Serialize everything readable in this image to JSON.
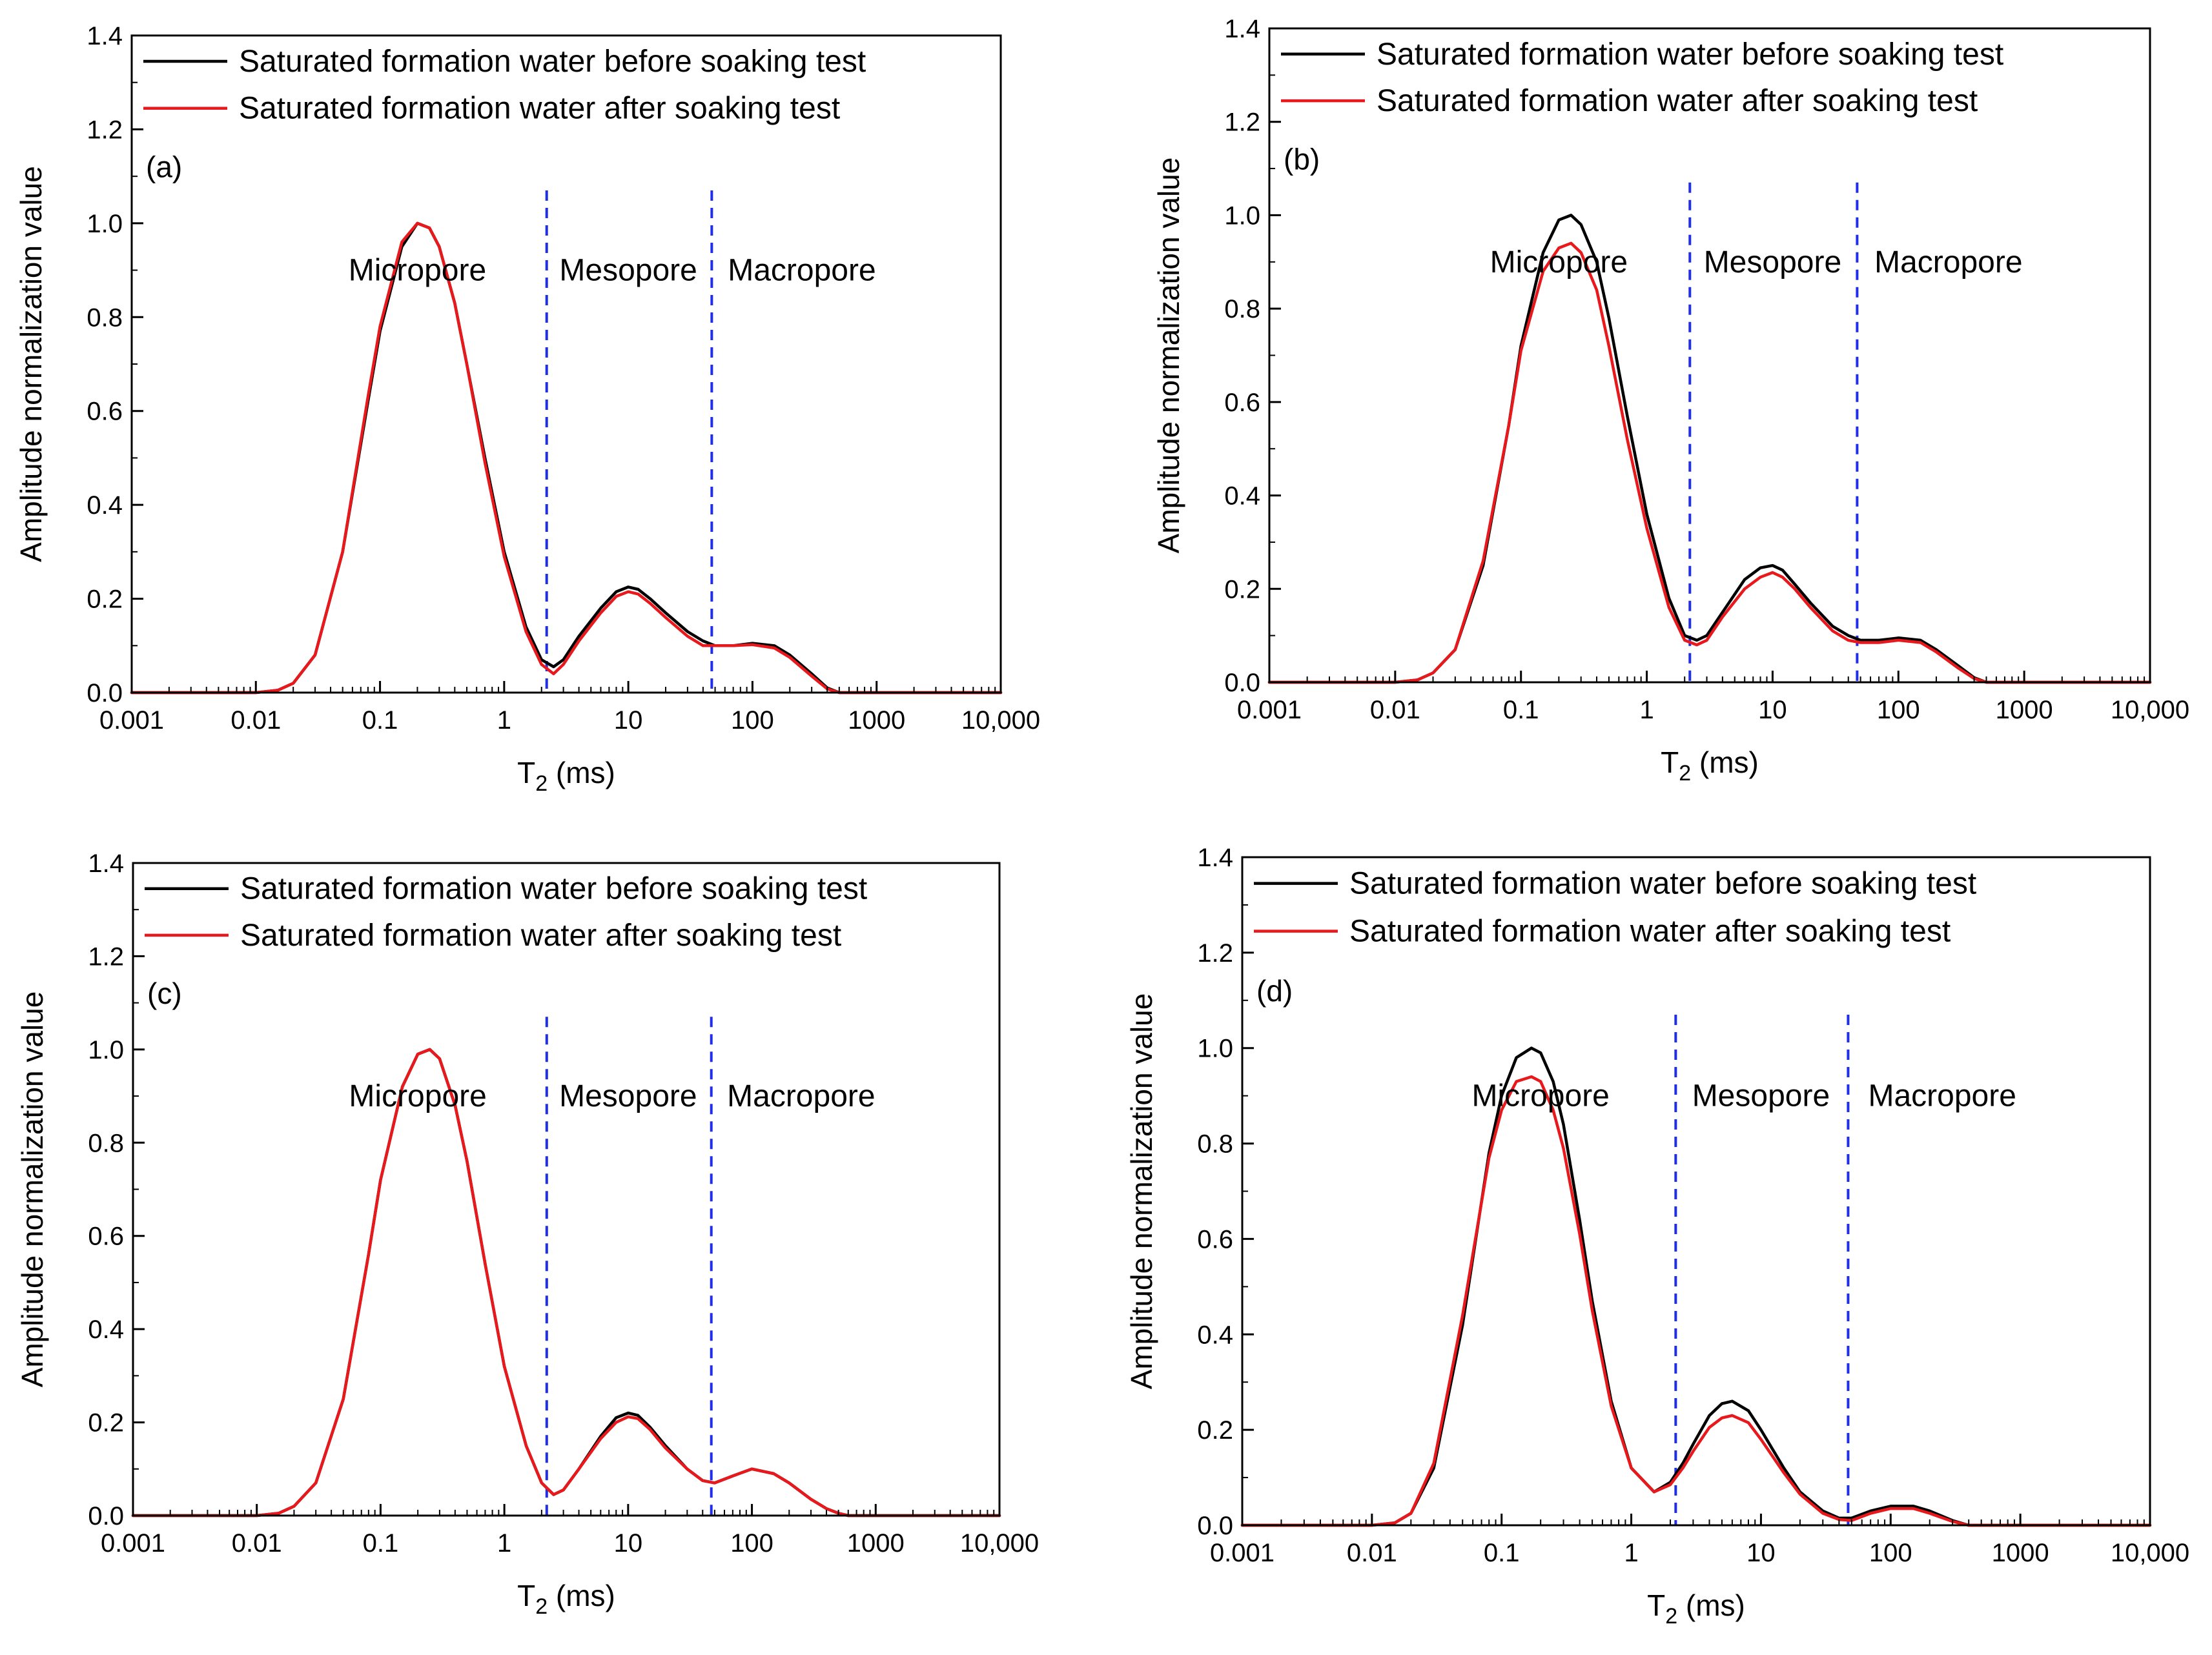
{
  "figure": {
    "legend": {
      "before": "Saturated formation water before soaking test",
      "after": "Saturated formation water after soaking test"
    },
    "colors": {
      "before": "#000000",
      "after": "#e8191c",
      "divider": "#1f2ee8",
      "axis": "#000000"
    }
  },
  "chart_data": [
    {
      "type": "line",
      "panel": "(a)",
      "xlabel": "T2 (ms)",
      "ylabel": "Amplitude normalization value",
      "x_scale": "log",
      "xlim": [
        0.001,
        10000
      ],
      "ylim": [
        0,
        1.4
      ],
      "x_ticks": [
        0.001,
        0.01,
        0.1,
        1,
        10,
        100,
        1000,
        10000
      ],
      "x_tick_labels": [
        "0.001",
        "0.01",
        "0.1",
        "1",
        "10",
        "100",
        "1000",
        "10,000"
      ],
      "y_ticks": [
        0.0,
        0.2,
        0.4,
        0.6,
        0.8,
        1.0,
        1.2,
        1.4
      ],
      "y_tick_labels": [
        "0.0",
        "0.2",
        "0.4",
        "0.6",
        "0.8",
        "1.0",
        "1.2",
        "1.4"
      ],
      "dividers_ms": [
        2.2,
        47
      ],
      "regions": [
        "Micropore",
        "Mesopore",
        "Macropore"
      ],
      "series": [
        {
          "name": "Saturated formation water before soaking test",
          "color": "#000000",
          "x": [
            0.01,
            0.015,
            0.02,
            0.03,
            0.05,
            0.08,
            0.1,
            0.15,
            0.2,
            0.25,
            0.3,
            0.4,
            0.5,
            0.7,
            1.0,
            1.5,
            2.0,
            2.5,
            3.0,
            4.0,
            6.0,
            8.0,
            10,
            12,
            15,
            20,
            30,
            40,
            50,
            70,
            100,
            150,
            200,
            300,
            400,
            500
          ],
          "values": [
            0.0,
            0.005,
            0.02,
            0.08,
            0.3,
            0.62,
            0.77,
            0.95,
            1.0,
            0.99,
            0.95,
            0.83,
            0.7,
            0.5,
            0.3,
            0.14,
            0.07,
            0.055,
            0.07,
            0.12,
            0.18,
            0.215,
            0.225,
            0.22,
            0.2,
            0.17,
            0.13,
            0.11,
            0.1,
            0.1,
            0.105,
            0.1,
            0.08,
            0.04,
            0.01,
            0.0
          ]
        },
        {
          "name": "Saturated formation water after soaking test",
          "color": "#e8191c",
          "x": [
            0.01,
            0.015,
            0.02,
            0.03,
            0.05,
            0.08,
            0.1,
            0.15,
            0.2,
            0.25,
            0.3,
            0.4,
            0.5,
            0.7,
            1.0,
            1.5,
            2.0,
            2.5,
            3.0,
            4.0,
            6.0,
            8.0,
            10,
            12,
            15,
            20,
            30,
            40,
            50,
            70,
            100,
            150,
            200,
            300,
            400,
            500
          ],
          "values": [
            0.0,
            0.005,
            0.02,
            0.08,
            0.3,
            0.63,
            0.78,
            0.96,
            1.0,
            0.99,
            0.95,
            0.83,
            0.7,
            0.49,
            0.29,
            0.13,
            0.06,
            0.04,
            0.06,
            0.11,
            0.17,
            0.205,
            0.215,
            0.21,
            0.19,
            0.16,
            0.12,
            0.1,
            0.1,
            0.1,
            0.102,
            0.095,
            0.075,
            0.035,
            0.008,
            0.0
          ]
        }
      ]
    },
    {
      "type": "line",
      "panel": "(b)",
      "xlabel": "T2 (ms)",
      "ylabel": "Amplitude normalization value",
      "x_scale": "log",
      "xlim": [
        0.001,
        10000
      ],
      "ylim": [
        0,
        1.4
      ],
      "x_ticks": [
        0.001,
        0.01,
        0.1,
        1,
        10,
        100,
        1000,
        10000
      ],
      "x_tick_labels": [
        "0.001",
        "0.01",
        "0.1",
        "1",
        "10",
        "100",
        "1000",
        "10,000"
      ],
      "y_ticks": [
        0.0,
        0.2,
        0.4,
        0.6,
        0.8,
        1.0,
        1.2,
        1.4
      ],
      "y_tick_labels": [
        "0.0",
        "0.2",
        "0.4",
        "0.6",
        "0.8",
        "1.0",
        "1.2",
        "1.4"
      ],
      "dividers_ms": [
        2.2,
        47
      ],
      "regions": [
        "Micropore",
        "Mesopore",
        "Macropore"
      ],
      "series": [
        {
          "name": "Saturated formation water before soaking test",
          "color": "#000000",
          "x": [
            0.01,
            0.015,
            0.02,
            0.03,
            0.05,
            0.08,
            0.1,
            0.15,
            0.2,
            0.25,
            0.3,
            0.4,
            0.5,
            0.7,
            1.0,
            1.5,
            2.0,
            2.5,
            3.0,
            4.0,
            6.0,
            8.0,
            10,
            12,
            15,
            20,
            30,
            40,
            50,
            70,
            100,
            150,
            200,
            300,
            400,
            500
          ],
          "values": [
            0.0,
            0.005,
            0.02,
            0.07,
            0.25,
            0.55,
            0.72,
            0.92,
            0.99,
            1.0,
            0.98,
            0.9,
            0.78,
            0.57,
            0.36,
            0.18,
            0.1,
            0.09,
            0.1,
            0.15,
            0.22,
            0.245,
            0.25,
            0.24,
            0.21,
            0.17,
            0.12,
            0.1,
            0.09,
            0.09,
            0.095,
            0.09,
            0.07,
            0.035,
            0.01,
            0.0
          ]
        },
        {
          "name": "Saturated formation water after soaking test",
          "color": "#e8191c",
          "x": [
            0.01,
            0.015,
            0.02,
            0.03,
            0.05,
            0.08,
            0.1,
            0.15,
            0.2,
            0.25,
            0.3,
            0.4,
            0.5,
            0.7,
            1.0,
            1.5,
            2.0,
            2.5,
            3.0,
            4.0,
            6.0,
            8.0,
            10,
            12,
            15,
            20,
            30,
            40,
            50,
            70,
            100,
            150,
            200,
            300,
            400,
            500
          ],
          "values": [
            0.0,
            0.005,
            0.02,
            0.07,
            0.26,
            0.55,
            0.71,
            0.88,
            0.93,
            0.94,
            0.92,
            0.84,
            0.72,
            0.52,
            0.33,
            0.16,
            0.09,
            0.08,
            0.09,
            0.14,
            0.2,
            0.225,
            0.235,
            0.225,
            0.2,
            0.16,
            0.11,
            0.09,
            0.085,
            0.085,
            0.09,
            0.085,
            0.065,
            0.03,
            0.008,
            0.0
          ]
        }
      ]
    },
    {
      "type": "line",
      "panel": "(c)",
      "xlabel": "T2 (ms)",
      "ylabel": "Amplitude normalization value",
      "x_scale": "log",
      "xlim": [
        0.001,
        10000
      ],
      "ylim": [
        0,
        1.4
      ],
      "x_ticks": [
        0.001,
        0.01,
        0.1,
        1,
        10,
        100,
        1000,
        10000
      ],
      "x_tick_labels": [
        "0.001",
        "0.01",
        "0.1",
        "1",
        "10",
        "100",
        "1000",
        "10,000"
      ],
      "y_ticks": [
        0.0,
        0.2,
        0.4,
        0.6,
        0.8,
        1.0,
        1.2,
        1.4
      ],
      "y_tick_labels": [
        "0.0",
        "0.2",
        "0.4",
        "0.6",
        "0.8",
        "1.0",
        "1.2",
        "1.4"
      ],
      "dividers_ms": [
        2.2,
        47
      ],
      "regions": [
        "Micropore",
        "Mesopore",
        "Macropore"
      ],
      "series": [
        {
          "name": "Saturated formation water before soaking test",
          "color": "#000000",
          "x": [
            0.01,
            0.015,
            0.02,
            0.03,
            0.05,
            0.08,
            0.1,
            0.15,
            0.2,
            0.25,
            0.3,
            0.4,
            0.5,
            0.7,
            1.0,
            1.5,
            2.0,
            2.5,
            3.0,
            4.0,
            6.0,
            8.0,
            10,
            12,
            15,
            20,
            30,
            40,
            50,
            70,
            100,
            150,
            200,
            300,
            400,
            500,
            600
          ],
          "values": [
            0.0,
            0.005,
            0.02,
            0.07,
            0.25,
            0.56,
            0.72,
            0.92,
            0.99,
            1.0,
            0.98,
            0.88,
            0.76,
            0.54,
            0.32,
            0.15,
            0.07,
            0.045,
            0.055,
            0.1,
            0.17,
            0.21,
            0.22,
            0.215,
            0.19,
            0.15,
            0.1,
            0.075,
            0.07,
            0.085,
            0.1,
            0.09,
            0.07,
            0.035,
            0.015,
            0.005,
            0.0
          ]
        },
        {
          "name": "Saturated formation water after soaking test",
          "color": "#e8191c",
          "x": [
            0.01,
            0.015,
            0.02,
            0.03,
            0.05,
            0.08,
            0.1,
            0.15,
            0.2,
            0.25,
            0.3,
            0.4,
            0.5,
            0.7,
            1.0,
            1.5,
            2.0,
            2.5,
            3.0,
            4.0,
            6.0,
            8.0,
            10,
            12,
            15,
            20,
            30,
            40,
            50,
            70,
            100,
            150,
            200,
            300,
            400,
            500,
            600
          ],
          "values": [
            0.0,
            0.005,
            0.02,
            0.07,
            0.25,
            0.56,
            0.72,
            0.92,
            0.99,
            1.0,
            0.98,
            0.88,
            0.76,
            0.54,
            0.32,
            0.15,
            0.07,
            0.045,
            0.055,
            0.1,
            0.165,
            0.2,
            0.212,
            0.208,
            0.185,
            0.145,
            0.1,
            0.075,
            0.07,
            0.085,
            0.1,
            0.09,
            0.07,
            0.035,
            0.015,
            0.005,
            0.0
          ]
        }
      ]
    },
    {
      "type": "line",
      "panel": "(d)",
      "xlabel": "T2 (ms)",
      "ylabel": "Amplitude normalization value",
      "x_scale": "log",
      "xlim": [
        0.001,
        10000
      ],
      "ylim": [
        0,
        1.4
      ],
      "x_ticks": [
        0.001,
        0.01,
        0.1,
        1,
        10,
        100,
        1000,
        10000
      ],
      "x_tick_labels": [
        "0.001",
        "0.01",
        "0.1",
        "1",
        "10",
        "100",
        "1000",
        "10,000"
      ],
      "y_ticks": [
        0.0,
        0.2,
        0.4,
        0.6,
        0.8,
        1.0,
        1.2,
        1.4
      ],
      "y_tick_labels": [
        "0.0",
        "0.2",
        "0.4",
        "0.6",
        "0.8",
        "1.0",
        "1.2",
        "1.4"
      ],
      "dividers_ms": [
        2.2,
        47
      ],
      "regions": [
        "Micropore",
        "Mesopore",
        "Macropore"
      ],
      "series": [
        {
          "name": "Saturated formation water before soaking test",
          "color": "#000000",
          "x": [
            0.01,
            0.015,
            0.02,
            0.03,
            0.05,
            0.08,
            0.1,
            0.13,
            0.17,
            0.2,
            0.25,
            0.3,
            0.4,
            0.5,
            0.7,
            1.0,
            1.5,
            2.0,
            2.5,
            3.0,
            4.0,
            5.0,
            6.0,
            8.0,
            10,
            15,
            20,
            30,
            40,
            50,
            70,
            100,
            150,
            200,
            300,
            400
          ],
          "values": [
            0.0,
            0.005,
            0.025,
            0.12,
            0.42,
            0.78,
            0.9,
            0.98,
            1.0,
            0.99,
            0.93,
            0.84,
            0.64,
            0.47,
            0.26,
            0.12,
            0.07,
            0.09,
            0.13,
            0.17,
            0.23,
            0.255,
            0.26,
            0.24,
            0.2,
            0.12,
            0.07,
            0.03,
            0.015,
            0.015,
            0.03,
            0.04,
            0.04,
            0.03,
            0.01,
            0.0
          ]
        },
        {
          "name": "Saturated formation water after soaking test",
          "color": "#e8191c",
          "x": [
            0.01,
            0.015,
            0.02,
            0.03,
            0.05,
            0.08,
            0.1,
            0.13,
            0.17,
            0.2,
            0.25,
            0.3,
            0.4,
            0.5,
            0.7,
            1.0,
            1.5,
            2.0,
            2.5,
            3.0,
            4.0,
            5.0,
            6.0,
            8.0,
            10,
            15,
            20,
            30,
            40,
            50,
            70,
            100,
            150,
            200,
            300,
            400
          ],
          "values": [
            0.0,
            0.005,
            0.025,
            0.13,
            0.44,
            0.77,
            0.87,
            0.93,
            0.94,
            0.93,
            0.87,
            0.79,
            0.61,
            0.45,
            0.25,
            0.12,
            0.07,
            0.085,
            0.12,
            0.155,
            0.205,
            0.225,
            0.23,
            0.215,
            0.18,
            0.11,
            0.065,
            0.025,
            0.012,
            0.01,
            0.025,
            0.035,
            0.035,
            0.025,
            0.008,
            0.0
          ]
        }
      ]
    }
  ]
}
